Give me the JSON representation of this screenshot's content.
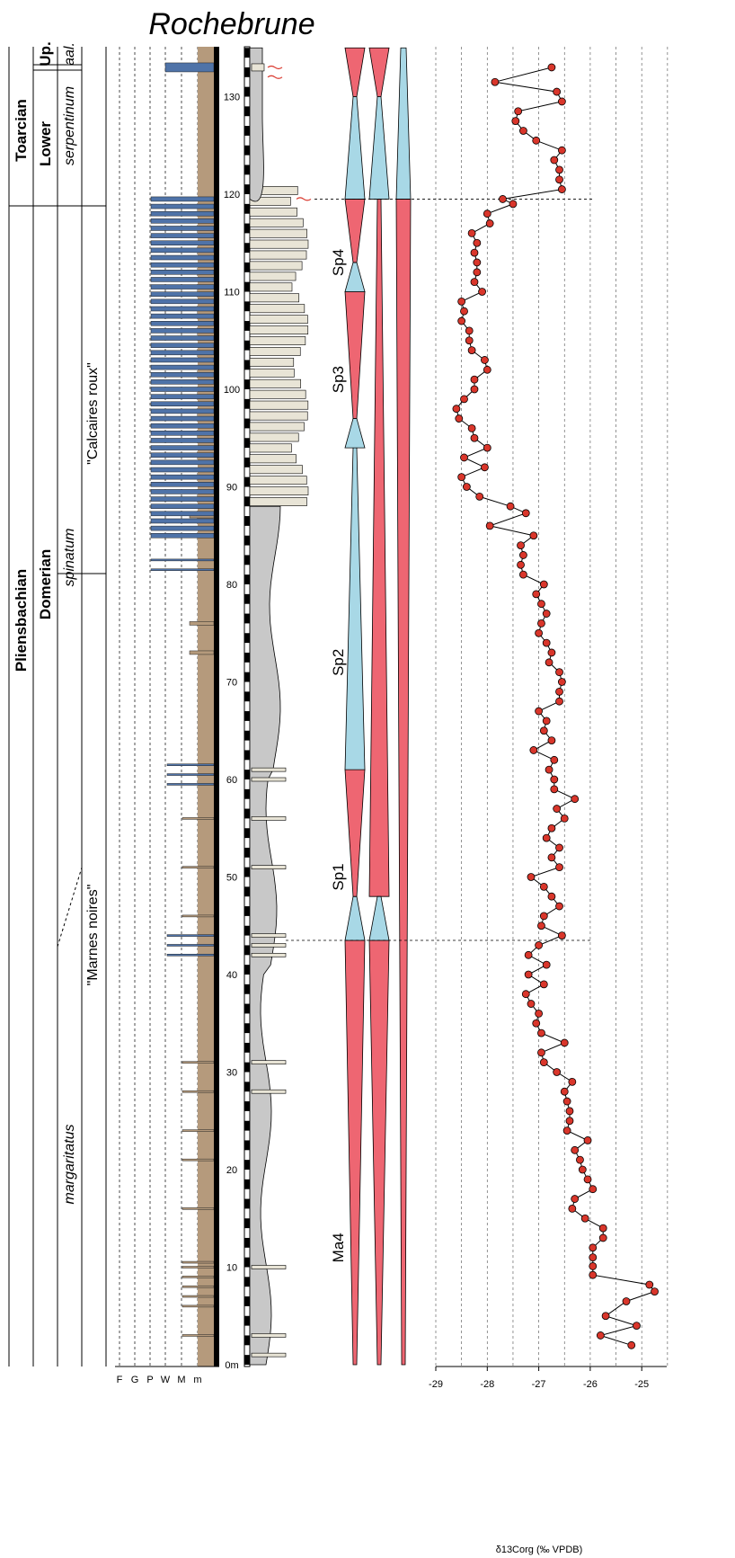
{
  "title": "Rochebrune",
  "chronostrat": {
    "system_stage": [
      "Toarcian",
      "Pliensbachian"
    ],
    "substage": [
      "Lower",
      "Domerian"
    ],
    "up_label": "Up.",
    "zones": [
      "aal.",
      "serpentinum",
      "spinatum",
      "margaritatus"
    ]
  },
  "lithology_names": [
    "\"Calcaires roux\"",
    "\"Marnes noires\""
  ],
  "texture_scale": [
    "F",
    "G",
    "P",
    "W",
    "M",
    "m"
  ],
  "depth_scale": {
    "unit": "m",
    "min": 0,
    "max": 135,
    "ticks": [
      0,
      10,
      20,
      30,
      40,
      50,
      60,
      70,
      80,
      90,
      100,
      110,
      120,
      130
    ],
    "tick_labels": [
      "0m",
      "10",
      "20",
      "30",
      "40",
      "50",
      "60",
      "70",
      "80",
      "90",
      "100",
      "110",
      "120",
      "130"
    ]
  },
  "sequences": {
    "labels": [
      "Ma4",
      "Sp1",
      "Sp2",
      "Sp3",
      "Sp4"
    ],
    "colors": {
      "transgressive": "#a8d8e6",
      "regressive": "#ee6672"
    }
  },
  "chart_data": {
    "type": "scatter",
    "xlabel": "δ13Corg (‰ VPDB)",
    "ylabel": "",
    "xlim": [
      -29,
      -24.7
    ],
    "x_ticks": [
      -29,
      -28,
      -27,
      -26,
      -25
    ],
    "x_tick_labels": [
      "-29",
      "-28",
      "-27",
      "-26",
      "-25"
    ],
    "ylim": [
      0,
      135
    ],
    "series": [
      {
        "marker_color": "#d9362b",
        "points": [
          {
            "depth": 2,
            "d13c": -25.2
          },
          {
            "depth": 3,
            "d13c": -25.8
          },
          {
            "depth": 4,
            "d13c": -25.1
          },
          {
            "depth": 5,
            "d13c": -25.7
          },
          {
            "depth": 6.5,
            "d13c": -25.3
          },
          {
            "depth": 7.5,
            "d13c": -24.75
          },
          {
            "depth": 8.2,
            "d13c": -24.85
          },
          {
            "depth": 9.2,
            "d13c": -25.95
          },
          {
            "depth": 10.1,
            "d13c": -25.95
          },
          {
            "depth": 11,
            "d13c": -25.95
          },
          {
            "depth": 12,
            "d13c": -25.95
          },
          {
            "depth": 13,
            "d13c": -25.75
          },
          {
            "depth": 14,
            "d13c": -25.75
          },
          {
            "depth": 15,
            "d13c": -26.1
          },
          {
            "depth": 16,
            "d13c": -26.35
          },
          {
            "depth": 17,
            "d13c": -26.3
          },
          {
            "depth": 18,
            "d13c": -25.95
          },
          {
            "depth": 19,
            "d13c": -26.05
          },
          {
            "depth": 20,
            "d13c": -26.15
          },
          {
            "depth": 21,
            "d13c": -26.2
          },
          {
            "depth": 22,
            "d13c": -26.3
          },
          {
            "depth": 23,
            "d13c": -26.05
          },
          {
            "depth": 24,
            "d13c": -26.45
          },
          {
            "depth": 25,
            "d13c": -26.4
          },
          {
            "depth": 26,
            "d13c": -26.4
          },
          {
            "depth": 27,
            "d13c": -26.45
          },
          {
            "depth": 28,
            "d13c": -26.5
          },
          {
            "depth": 29,
            "d13c": -26.35
          },
          {
            "depth": 30,
            "d13c": -26.65
          },
          {
            "depth": 31,
            "d13c": -26.9
          },
          {
            "depth": 32,
            "d13c": -26.95
          },
          {
            "depth": 33,
            "d13c": -26.5
          },
          {
            "depth": 34,
            "d13c": -26.95
          },
          {
            "depth": 35,
            "d13c": -27.05
          },
          {
            "depth": 36,
            "d13c": -27.0
          },
          {
            "depth": 37,
            "d13c": -27.15
          },
          {
            "depth": 38,
            "d13c": -27.25
          },
          {
            "depth": 39,
            "d13c": -26.9
          },
          {
            "depth": 40,
            "d13c": -27.2
          },
          {
            "depth": 41,
            "d13c": -26.85
          },
          {
            "depth": 42,
            "d13c": -27.2
          },
          {
            "depth": 43,
            "d13c": -27.0
          },
          {
            "depth": 44,
            "d13c": -26.55
          },
          {
            "depth": 45,
            "d13c": -26.95
          },
          {
            "depth": 46,
            "d13c": -26.9
          },
          {
            "depth": 47,
            "d13c": -26.6
          },
          {
            "depth": 48,
            "d13c": -26.75
          },
          {
            "depth": 49,
            "d13c": -26.9
          },
          {
            "depth": 50,
            "d13c": -27.15
          },
          {
            "depth": 51,
            "d13c": -26.6
          },
          {
            "depth": 52,
            "d13c": -26.75
          },
          {
            "depth": 53,
            "d13c": -26.6
          },
          {
            "depth": 54,
            "d13c": -26.85
          },
          {
            "depth": 55,
            "d13c": -26.75
          },
          {
            "depth": 56,
            "d13c": -26.5
          },
          {
            "depth": 57,
            "d13c": -26.65
          },
          {
            "depth": 58,
            "d13c": -26.3
          },
          {
            "depth": 59,
            "d13c": -26.7
          },
          {
            "depth": 60,
            "d13c": -26.7
          },
          {
            "depth": 61,
            "d13c": -26.8
          },
          {
            "depth": 62,
            "d13c": -26.7
          },
          {
            "depth": 63,
            "d13c": -27.1
          },
          {
            "depth": 64,
            "d13c": -26.75
          },
          {
            "depth": 65,
            "d13c": -26.9
          },
          {
            "depth": 66,
            "d13c": -26.85
          },
          {
            "depth": 67,
            "d13c": -27.0
          },
          {
            "depth": 68,
            "d13c": -26.6
          },
          {
            "depth": 69,
            "d13c": -26.6
          },
          {
            "depth": 70,
            "d13c": -26.55
          },
          {
            "depth": 71,
            "d13c": -26.6
          },
          {
            "depth": 72,
            "d13c": -26.8
          },
          {
            "depth": 73,
            "d13c": -26.75
          },
          {
            "depth": 74,
            "d13c": -26.85
          },
          {
            "depth": 75,
            "d13c": -27.0
          },
          {
            "depth": 76,
            "d13c": -26.95
          },
          {
            "depth": 77,
            "d13c": -26.85
          },
          {
            "depth": 78,
            "d13c": -26.95
          },
          {
            "depth": 79,
            "d13c": -27.05
          },
          {
            "depth": 80,
            "d13c": -26.9
          },
          {
            "depth": 81,
            "d13c": -27.3
          },
          {
            "depth": 82,
            "d13c": -27.35
          },
          {
            "depth": 83,
            "d13c": -27.3
          },
          {
            "depth": 84,
            "d13c": -27.35
          },
          {
            "depth": 85,
            "d13c": -27.1
          },
          {
            "depth": 86,
            "d13c": -27.95
          },
          {
            "depth": 87.3,
            "d13c": -27.25
          },
          {
            "depth": 88,
            "d13c": -27.55
          },
          {
            "depth": 89,
            "d13c": -28.15
          },
          {
            "depth": 90,
            "d13c": -28.4
          },
          {
            "depth": 91,
            "d13c": -28.5
          },
          {
            "depth": 92,
            "d13c": -28.05
          },
          {
            "depth": 93,
            "d13c": -28.45
          },
          {
            "depth": 94,
            "d13c": -28.0
          },
          {
            "depth": 95,
            "d13c": -28.25
          },
          {
            "depth": 96,
            "d13c": -28.3
          },
          {
            "depth": 97,
            "d13c": -28.55
          },
          {
            "depth": 98,
            "d13c": -28.6
          },
          {
            "depth": 99,
            "d13c": -28.45
          },
          {
            "depth": 100,
            "d13c": -28.25
          },
          {
            "depth": 101,
            "d13c": -28.25
          },
          {
            "depth": 102,
            "d13c": -28.0
          },
          {
            "depth": 103,
            "d13c": -28.05
          },
          {
            "depth": 104,
            "d13c": -28.3
          },
          {
            "depth": 105,
            "d13c": -28.35
          },
          {
            "depth": 106,
            "d13c": -28.35
          },
          {
            "depth": 107,
            "d13c": -28.5
          },
          {
            "depth": 108,
            "d13c": -28.45
          },
          {
            "depth": 109,
            "d13c": -28.5
          },
          {
            "depth": 110,
            "d13c": -28.1
          },
          {
            "depth": 111,
            "d13c": -28.25
          },
          {
            "depth": 112,
            "d13c": -28.2
          },
          {
            "depth": 113,
            "d13c": -28.2
          },
          {
            "depth": 114,
            "d13c": -28.25
          },
          {
            "depth": 115,
            "d13c": -28.2
          },
          {
            "depth": 116,
            "d13c": -28.3
          },
          {
            "depth": 117,
            "d13c": -27.95
          },
          {
            "depth": 118,
            "d13c": -28.0
          },
          {
            "depth": 119,
            "d13c": -27.5
          },
          {
            "depth": 119.5,
            "d13c": -27.7
          },
          {
            "depth": 120.5,
            "d13c": -26.55
          },
          {
            "depth": 121.5,
            "d13c": -26.6
          },
          {
            "depth": 122.5,
            "d13c": -26.6
          },
          {
            "depth": 123.5,
            "d13c": -26.7
          },
          {
            "depth": 124.5,
            "d13c": -26.55
          },
          {
            "depth": 125.5,
            "d13c": -27.05
          },
          {
            "depth": 126.5,
            "d13c": -27.3
          },
          {
            "depth": 127.5,
            "d13c": -27.45
          },
          {
            "depth": 128.5,
            "d13c": -27.4
          },
          {
            "depth": 129.5,
            "d13c": -26.55
          },
          {
            "depth": 130.5,
            "d13c": -26.65
          },
          {
            "depth": 131.5,
            "d13c": -27.85
          },
          {
            "depth": 133,
            "d13c": -26.75
          }
        ]
      }
    ],
    "grid": true,
    "legend": "none"
  }
}
